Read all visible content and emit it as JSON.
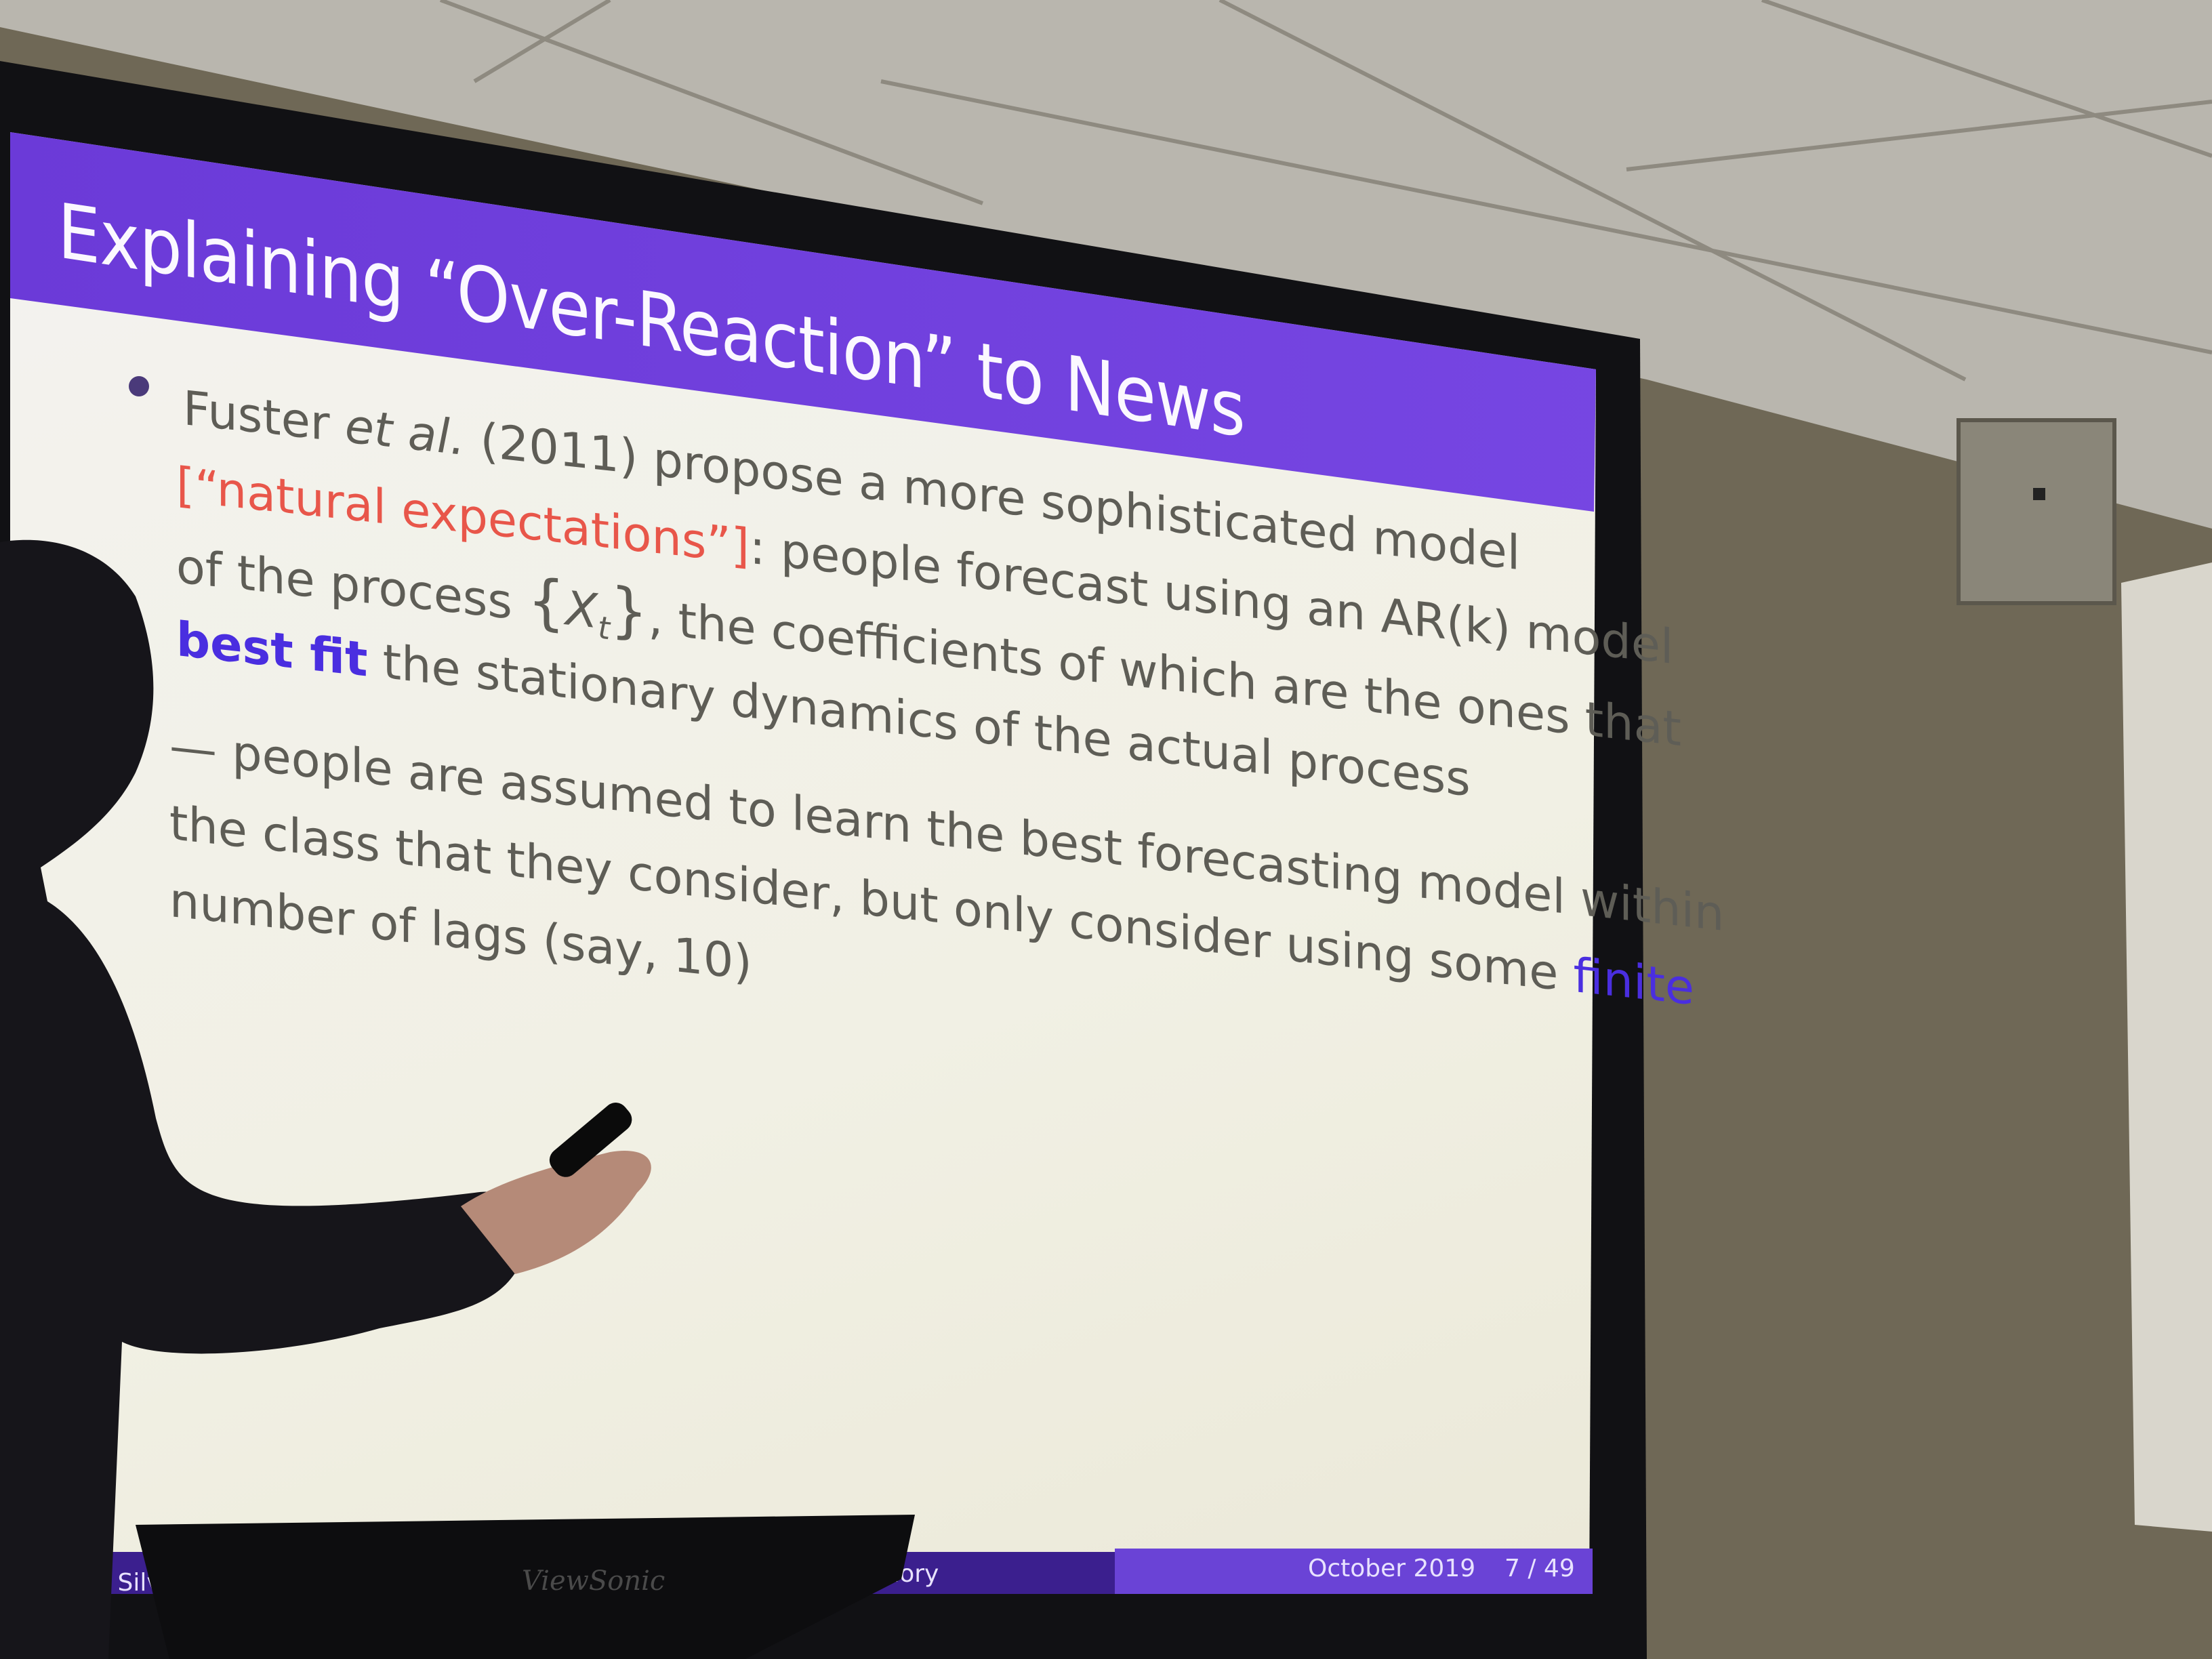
{
  "slide": {
    "title": "Explaining “Over-Reaction” to News",
    "lines": [
      [
        "Fuster ",
        "et al.",
        " (2011) propose a more sophisticated model"
      ],
      [
        "[“natural expectations”]",
        ": people forecast using an AR(k) model"
      ],
      [
        "of the process ",
        "{",
        "X",
        "t",
        "}",
        ", the coefficients of which are the ones that"
      ],
      [
        "best fit",
        " the stationary dynamics of the actual process"
      ],
      [
        "— people are assumed to learn the best forecasting model within"
      ],
      [
        "the class that they consider, but only consider using some ",
        "finite"
      ],
      [
        "number of lags (say, 10)"
      ]
    ],
    "footer": {
      "author": "la Silv",
      "talk": "emory",
      "date": "October 2019",
      "page": "7 / 49"
    }
  },
  "podium": {
    "brand": "ViewSonic"
  }
}
